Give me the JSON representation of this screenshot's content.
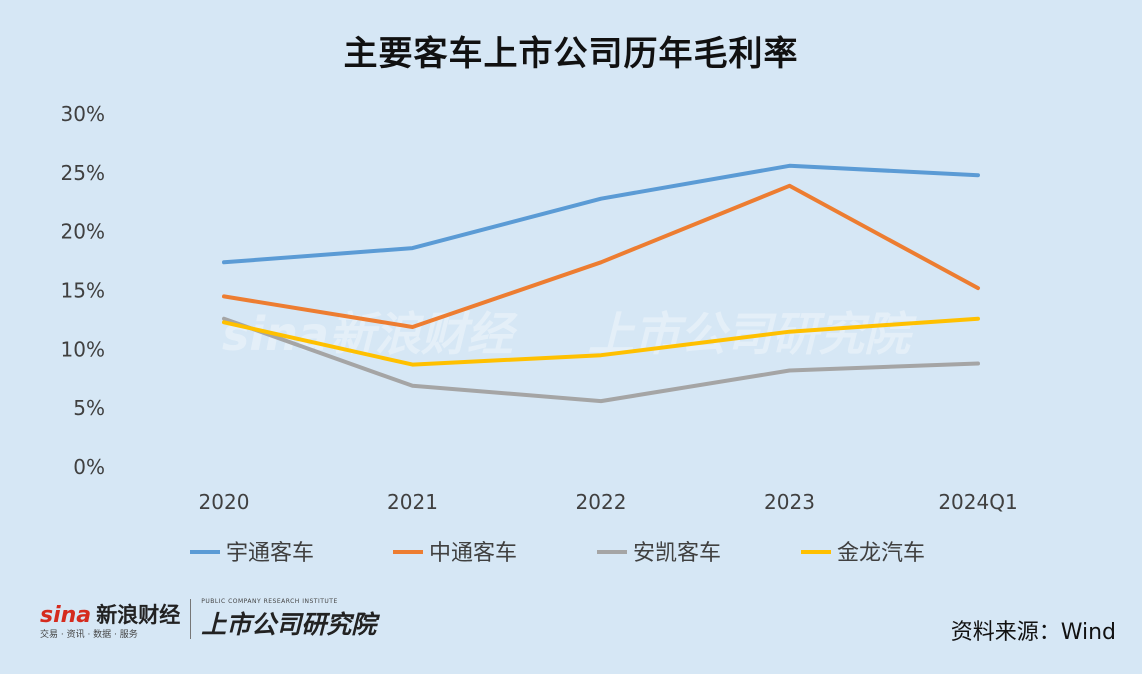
{
  "chart_data": {
    "type": "line",
    "title": "主要客车上市公司历年毛利率",
    "categories": [
      "2020",
      "2021",
      "2022",
      "2023",
      "2024Q1"
    ],
    "ylim": [
      0,
      30
    ],
    "yticks": [
      "0%",
      "5%",
      "10%",
      "15%",
      "20%",
      "25%",
      "30%"
    ],
    "ytick_values": [
      0,
      5,
      10,
      15,
      20,
      25,
      30
    ],
    "grid": false,
    "legend_position": "bottom",
    "series": [
      {
        "name": "宇通客车",
        "color": "#5b9bd5",
        "values": [
          17.4,
          18.6,
          22.8,
          25.6,
          24.8
        ]
      },
      {
        "name": "中通客车",
        "color": "#ed7d31",
        "values": [
          14.5,
          11.9,
          17.4,
          23.9,
          15.2
        ]
      },
      {
        "name": "安凯客车",
        "color": "#a5a5a5",
        "values": [
          12.6,
          6.9,
          5.6,
          8.2,
          8.8
        ]
      },
      {
        "name": "金龙汽车",
        "color": "#ffc000",
        "values": [
          12.3,
          8.7,
          9.5,
          11.5,
          12.6
        ]
      }
    ]
  },
  "watermark": {
    "left": "sina新浪财经",
    "right": "上市公司研究院"
  },
  "footer": {
    "logo_sina": "sina",
    "logo_sina_cn": "新浪财经",
    "logo_sina_sub": "交易 · 资讯 · 数据 · 服务",
    "logo_institute": "上市公司研究院",
    "logo_institute_sub": "PUBLIC COMPANY RESEARCH INSTITUTE",
    "source": "资料来源：Wind"
  }
}
